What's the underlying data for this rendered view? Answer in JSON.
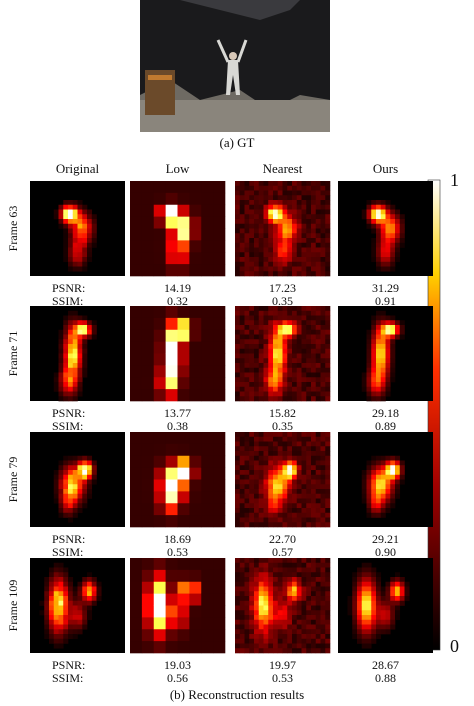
{
  "figure": {
    "panel_a_caption": "(a) GT",
    "panel_b_caption": "(b) Reconstruction results",
    "columns": [
      "Original",
      "Low",
      "Nearest",
      "Ours"
    ],
    "metric_labels": [
      "PSNR:",
      "SSIM:"
    ],
    "rows": [
      {
        "label": "Frame 63",
        "psnr": [
          "14.19",
          "17.23",
          "31.29"
        ],
        "ssim": [
          "0.32",
          "0.35",
          "0.91"
        ]
      },
      {
        "label": "Frame 71",
        "psnr": [
          "13.77",
          "15.82",
          "29.18"
        ],
        "ssim": [
          "0.38",
          "0.35",
          "0.89"
        ]
      },
      {
        "label": "Frame 79",
        "psnr": [
          "18.69",
          "22.70",
          "29.21"
        ],
        "ssim": [
          "0.53",
          "0.57",
          "0.90"
        ]
      },
      {
        "label": "Frame 109",
        "psnr": [
          "19.03",
          "19.97",
          "28.67"
        ],
        "ssim": [
          "0.56",
          "0.53",
          "0.88"
        ]
      }
    ],
    "colorbar": {
      "max_label": "1",
      "min_label": "0"
    }
  }
}
